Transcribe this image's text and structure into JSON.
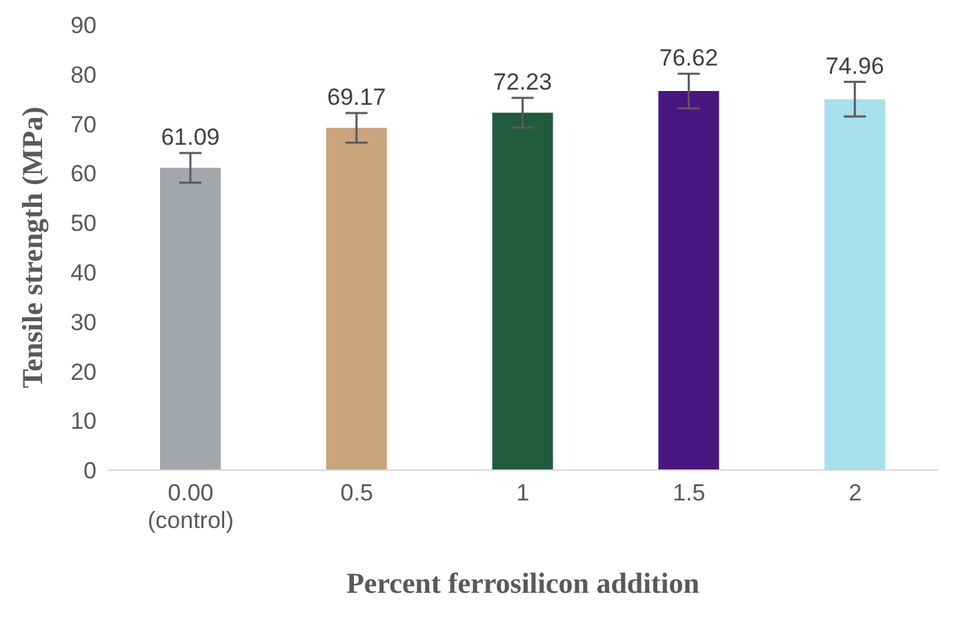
{
  "chart_data": {
    "type": "bar",
    "xlabel": "Percent ferrosilicon addition",
    "ylabel": "Tensile strength (MPa)",
    "categories": [
      "0.00\n(control)",
      "0.5",
      "1",
      "1.5",
      "2"
    ],
    "values": [
      61.09,
      69.17,
      72.23,
      76.62,
      74.96
    ],
    "colors": [
      "#a3a6aa",
      "#c9a47c",
      "#1f5b3c",
      "#4a1680",
      "#a6e0ea"
    ],
    "errors": [
      3,
      3,
      3,
      3.5,
      3.5
    ],
    "ylim": [
      0,
      90
    ],
    "yticks": [
      0,
      10,
      20,
      30,
      40,
      50,
      60,
      70,
      80,
      90
    ],
    "grid": false,
    "data_labels": true
  }
}
